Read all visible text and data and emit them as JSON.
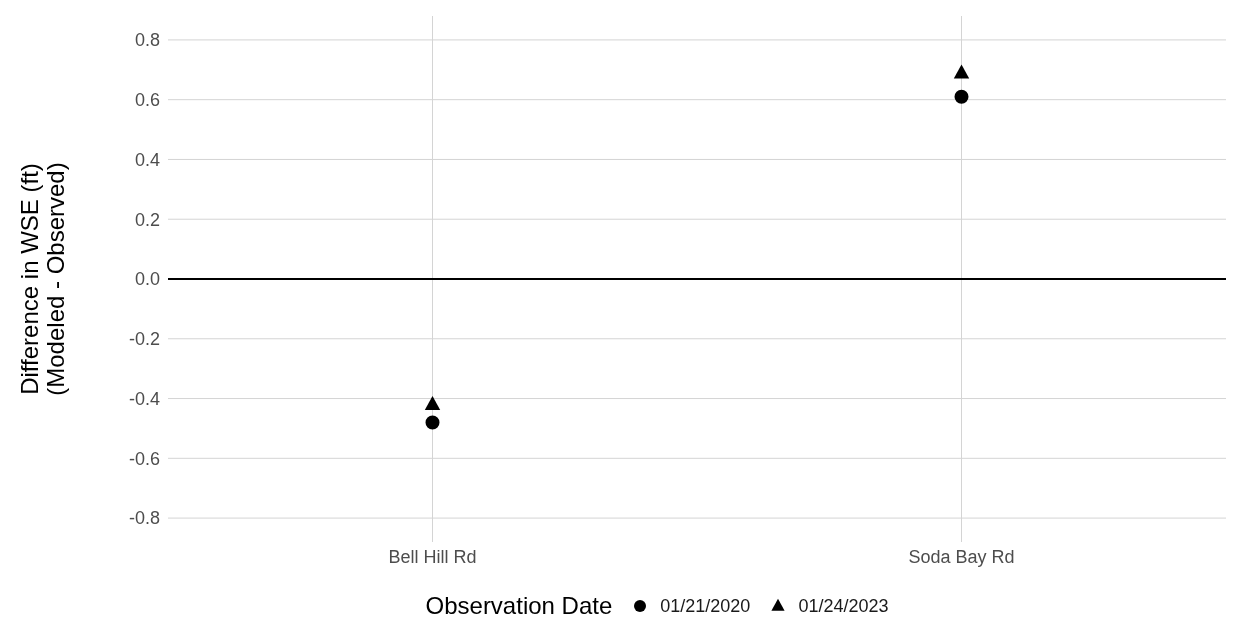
{
  "chart_data": {
    "type": "scatter",
    "ylabel": "Difference in WSE (ft)\n(Modeled - Observed)",
    "legend_title": "Observation Date",
    "categories": [
      "Bell Hill Rd",
      "Soda Bay Rd"
    ],
    "series": [
      {
        "name": "01/21/2020",
        "color": "#000000",
        "marker": "circle",
        "values": [
          -0.48,
          0.61
        ]
      },
      {
        "name": "01/24/2023",
        "color": "#000000",
        "marker": "triangle",
        "values": [
          -0.42,
          0.69
        ]
      }
    ],
    "ylim": [
      -0.88,
      0.88
    ],
    "yticks": [
      -0.8,
      -0.6,
      -0.4,
      -0.2,
      {
        "value": 0,
        "label": "0.0"
      },
      0.2,
      0.4,
      0.6,
      0.8
    ],
    "ref_lines": [
      {
        "axis": "y",
        "value": 0,
        "color": "#000000"
      }
    ],
    "grid": true,
    "legend": "bottom"
  }
}
